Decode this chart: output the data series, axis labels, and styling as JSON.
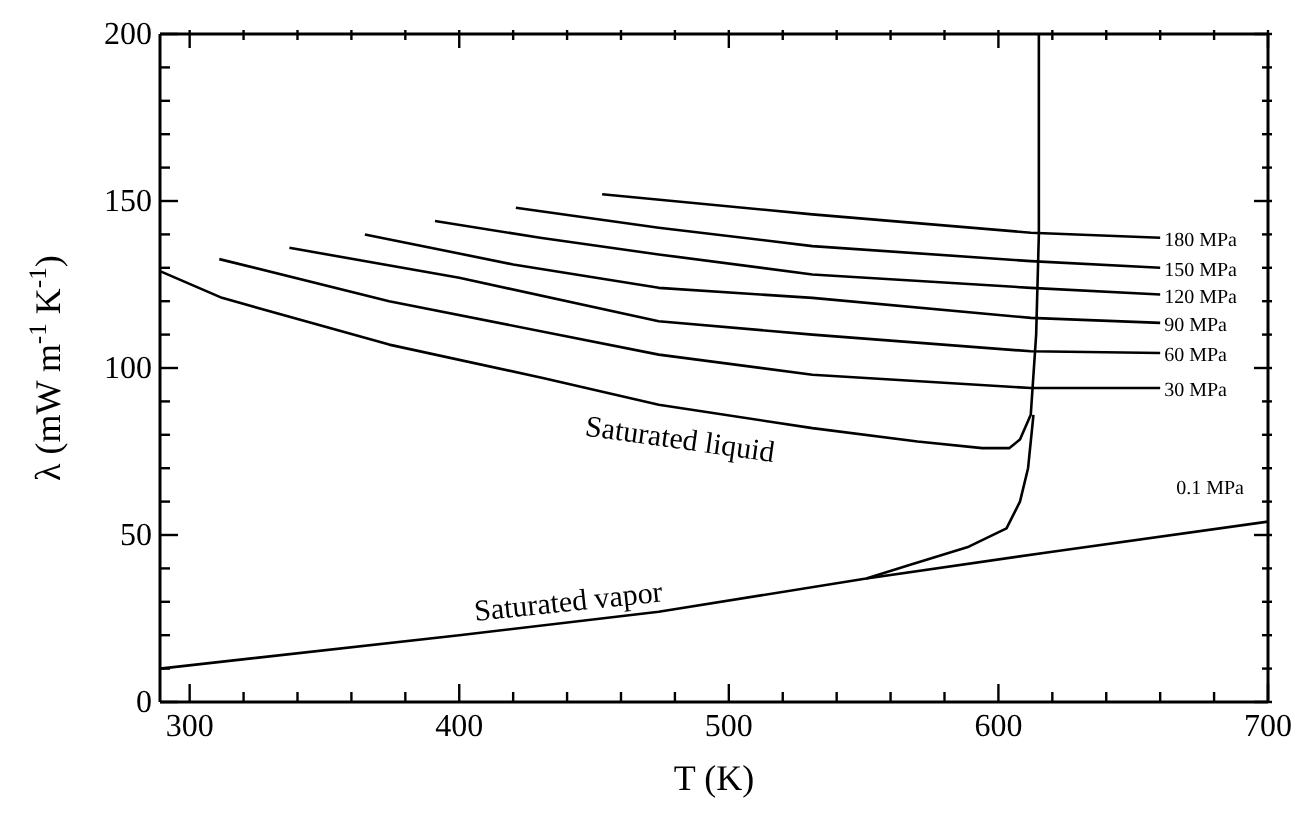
{
  "chart_data": {
    "type": "line",
    "xlabel": "T (K)",
    "ylabel": "λ (mW m$^{-1}$ K$^{-1}$)",
    "legend": "right",
    "grid": false,
    "xlim": [
      289,
      700
    ],
    "ylim": [
      0,
      200
    ],
    "xticks": [
      {
        "value": 300,
        "label": "300"
      },
      {
        "value": 320,
        "label": null
      },
      {
        "value": 340,
        "label": null
      },
      {
        "value": 360,
        "label": null
      },
      {
        "value": 380,
        "label": null
      },
      {
        "value": 400,
        "label": "400"
      },
      {
        "value": 420,
        "label": null
      },
      {
        "value": 440,
        "label": null
      },
      {
        "value": 460,
        "label": null
      },
      {
        "value": 480,
        "label": null
      },
      {
        "value": 500,
        "label": "500"
      },
      {
        "value": 520,
        "label": null
      },
      {
        "value": 540,
        "label": null
      },
      {
        "value": 560,
        "label": null
      },
      {
        "value": 580,
        "label": null
      },
      {
        "value": 600,
        "label": "600"
      },
      {
        "value": 620,
        "label": null
      },
      {
        "value": 640,
        "label": null
      },
      {
        "value": 660,
        "label": null
      },
      {
        "value": 680,
        "label": null
      },
      {
        "value": 700,
        "label": "700"
      }
    ],
    "yticks": [
      {
        "value": 0,
        "label": "0"
      },
      {
        "value": 10,
        "label": null
      },
      {
        "value": 20,
        "label": null
      },
      {
        "value": 30,
        "label": null
      },
      {
        "value": 40,
        "label": null
      },
      {
        "value": 50,
        "label": "50"
      },
      {
        "value": 60,
        "label": null
      },
      {
        "value": 70,
        "label": null
      },
      {
        "value": 80,
        "label": null
      },
      {
        "value": 90,
        "label": null
      },
      {
        "value": 100,
        "label": "100"
      },
      {
        "value": 110,
        "label": null
      },
      {
        "value": 120,
        "label": null
      },
      {
        "value": 130,
        "label": null
      },
      {
        "value": 140,
        "label": null
      },
      {
        "value": 150,
        "label": "150"
      },
      {
        "value": 160,
        "label": null
      },
      {
        "value": 170,
        "label": null
      },
      {
        "value": 180,
        "label": null
      },
      {
        "value": 190,
        "label": null
      },
      {
        "value": 200,
        "label": "200"
      }
    ],
    "series": [
      {
        "name": "Saturated liquid",
        "color": "#000000",
        "x": [
          289,
          312,
          374,
          431,
          474,
          531,
          570,
          594,
          604,
          608,
          612,
          614,
          615,
          615
        ],
        "values": [
          129,
          121,
          107,
          97,
          89,
          82,
          78,
          76,
          76,
          78.6,
          86,
          110,
          140,
          200
        ]
      },
      {
        "name": "Saturated vapor",
        "color": "#000000",
        "x": [
          289,
          400,
          474,
          551,
          567,
          589,
          603,
          608,
          611,
          613
        ],
        "values": [
          10,
          20,
          27,
          37,
          41,
          46.5,
          52,
          60,
          70,
          86
        ]
      },
      {
        "name": "0.1 MPa",
        "color": "#000000",
        "x": [
          551,
          620,
          700
        ],
        "values": [
          37,
          45,
          54
        ]
      },
      {
        "name": "30 MPa",
        "color": "#000000",
        "x": [
          311,
          374,
          474,
          531,
          612,
          660
        ],
        "values": [
          132.6,
          120,
          104,
          98,
          94,
          94
        ]
      },
      {
        "name": "60 MPa",
        "color": "#000000",
        "x": [
          337,
          400,
          474,
          531,
          612,
          660
        ],
        "values": [
          136,
          127,
          114,
          110,
          105,
          104.5
        ]
      },
      {
        "name": "90 MPa",
        "color": "#000000",
        "x": [
          365,
          420,
          474,
          531,
          612,
          660
        ],
        "values": [
          140,
          131,
          124,
          121,
          115,
          113.5
        ]
      },
      {
        "name": "120 MPa",
        "color": "#000000",
        "x": [
          391,
          430,
          474,
          531,
          612,
          660
        ],
        "values": [
          144,
          139,
          134,
          128,
          124,
          122
        ]
      },
      {
        "name": "150 MPa",
        "color": "#000000",
        "x": [
          421,
          474,
          531,
          612,
          660
        ],
        "values": [
          148,
          142,
          136.5,
          132,
          130
        ]
      },
      {
        "name": "180 MPa",
        "color": "#000000",
        "x": [
          453,
          531,
          612,
          660
        ],
        "values": [
          152,
          146,
          140.5,
          139
        ]
      }
    ]
  }
}
